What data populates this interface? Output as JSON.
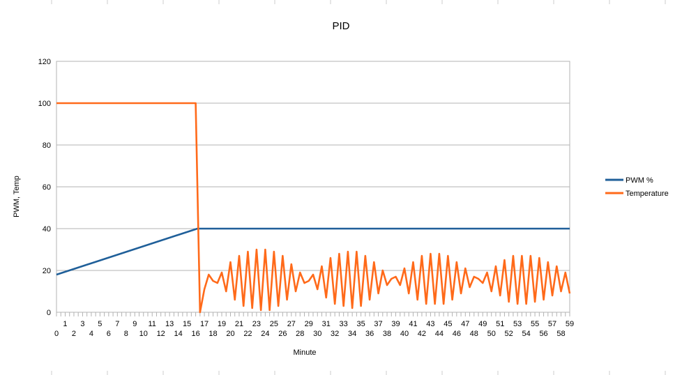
{
  "chart_data": {
    "type": "line",
    "title": "PID",
    "xlabel": "Minute",
    "ylabel": "PWM, Temp",
    "ylim": [
      0,
      120
    ],
    "yticks": [
      0,
      20,
      40,
      60,
      80,
      100,
      120
    ],
    "xlim": [
      0,
      59
    ],
    "xtick_labels_odd_row": [
      "1",
      "3",
      "5",
      "7",
      "9",
      "11",
      "13",
      "15",
      "17",
      "19",
      "21",
      "23",
      "25",
      "27",
      "29",
      "31",
      "33",
      "35",
      "37",
      "39",
      "41",
      "43",
      "45",
      "47",
      "49",
      "51",
      "53",
      "55",
      "57",
      "59"
    ],
    "xtick_labels_even_row": [
      "0",
      "2",
      "4",
      "6",
      "8",
      "10",
      "12",
      "14",
      "16",
      "18",
      "20",
      "22",
      "24",
      "26",
      "28",
      "30",
      "32",
      "34",
      "36",
      "38",
      "40",
      "42",
      "44",
      "46",
      "48",
      "50",
      "52",
      "54",
      "56",
      "58"
    ],
    "grid": "horizontal",
    "legend_position": "right",
    "series": [
      {
        "name": "PWM %",
        "color": "#1f5f99",
        "points": [
          [
            0,
            18
          ],
          [
            16.2,
            40
          ],
          [
            59,
            40
          ]
        ]
      },
      {
        "name": "Temperature",
        "color": "#ff6a1a",
        "points": [
          [
            0,
            100
          ],
          [
            16,
            100
          ],
          [
            16.5,
            0
          ],
          [
            17,
            11
          ],
          [
            17.5,
            18
          ],
          [
            18,
            15
          ],
          [
            18.5,
            14
          ],
          [
            19,
            19
          ],
          [
            19.5,
            10
          ],
          [
            20,
            24
          ],
          [
            20.5,
            6
          ],
          [
            21,
            27
          ],
          [
            21.5,
            3
          ],
          [
            22,
            29
          ],
          [
            22.5,
            2
          ],
          [
            23,
            30
          ],
          [
            23.5,
            1
          ],
          [
            24,
            30
          ],
          [
            24.5,
            1
          ],
          [
            25,
            29
          ],
          [
            25.5,
            3
          ],
          [
            26,
            27
          ],
          [
            26.5,
            6
          ],
          [
            27,
            23
          ],
          [
            27.5,
            10
          ],
          [
            28,
            19
          ],
          [
            28.5,
            14
          ],
          [
            29,
            15
          ],
          [
            29.5,
            18
          ],
          [
            30,
            11
          ],
          [
            30.5,
            22
          ],
          [
            31,
            7
          ],
          [
            31.5,
            26
          ],
          [
            32,
            4
          ],
          [
            32.5,
            28
          ],
          [
            33,
            3
          ],
          [
            33.5,
            29
          ],
          [
            34,
            2
          ],
          [
            34.5,
            29
          ],
          [
            35,
            3
          ],
          [
            35.5,
            27
          ],
          [
            36,
            6
          ],
          [
            36.5,
            24
          ],
          [
            37,
            9
          ],
          [
            37.5,
            20
          ],
          [
            38,
            13
          ],
          [
            38.5,
            16
          ],
          [
            39,
            17
          ],
          [
            39.5,
            13
          ],
          [
            40,
            21
          ],
          [
            40.5,
            9
          ],
          [
            41,
            24
          ],
          [
            41.5,
            6
          ],
          [
            42,
            27
          ],
          [
            42.5,
            4
          ],
          [
            43,
            28
          ],
          [
            43.5,
            4
          ],
          [
            44,
            28
          ],
          [
            44.5,
            4
          ],
          [
            45,
            27
          ],
          [
            45.5,
            6
          ],
          [
            46,
            24
          ],
          [
            46.5,
            9
          ],
          [
            47,
            21
          ],
          [
            47.5,
            12
          ],
          [
            48,
            17
          ],
          [
            48.5,
            16
          ],
          [
            49,
            14
          ],
          [
            49.5,
            19
          ],
          [
            50,
            10
          ],
          [
            50.5,
            22
          ],
          [
            51,
            8
          ],
          [
            51.5,
            25
          ],
          [
            52,
            5
          ],
          [
            52.5,
            27
          ],
          [
            53,
            4
          ],
          [
            53.5,
            27
          ],
          [
            54,
            4
          ],
          [
            54.5,
            27
          ],
          [
            55,
            5
          ],
          [
            55.5,
            26
          ],
          [
            56,
            6
          ],
          [
            56.5,
            24
          ],
          [
            57,
            8
          ],
          [
            57.5,
            22
          ],
          [
            58,
            10
          ],
          [
            58.5,
            19
          ],
          [
            59,
            9
          ]
        ]
      }
    ]
  }
}
